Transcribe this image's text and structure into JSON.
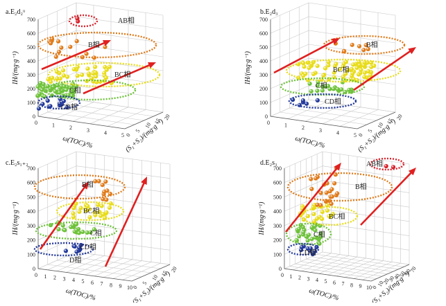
{
  "colors": {
    "B": "#e07b1a",
    "BC": "#e8dc1a",
    "C": "#6ec23a",
    "CD": "#22389a",
    "AB": "#d8202a",
    "arrow": "#e02020",
    "grid": "#c8c8c8"
  },
  "chart_data": [
    {
      "type": "scatter",
      "title": "a.E₂d₂ᵘ",
      "xlabel": "ω(TOC)/%",
      "ylabel": "IH/(mg·g⁻¹)",
      "zlabel": "(S₁+S₂)/(mg·g⁻¹)",
      "xticks": [
        "0",
        "1",
        "2",
        "3",
        "4",
        "5"
      ],
      "yticks": [
        "0",
        "100",
        "200",
        "300",
        "400",
        "500",
        "600",
        "700"
      ],
      "zticks": [
        "0",
        "5",
        "10",
        "15",
        "20"
      ],
      "ylim": [
        0,
        700
      ],
      "facies": [
        {
          "key": "AB",
          "label": "AB相",
          "color": "#d8202a"
        },
        {
          "key": "B",
          "label": "B相",
          "color": "#e07b1a"
        },
        {
          "key": "BC",
          "label": "BC相",
          "color": "#e8dc1a"
        },
        {
          "key": "C",
          "label": "C相",
          "color": "#6ec23a"
        },
        {
          "key": "CD",
          "label": "CD相",
          "color": "#22389a"
        }
      ]
    },
    {
      "type": "scatter",
      "title": "b.E₂d₃",
      "xlabel": "ω(TOC)/%",
      "ylabel": "IH/(mg·g⁻¹)",
      "zlabel": "(S₁+S₂)/(mg·g⁻¹)",
      "xticks": [
        "0",
        "1",
        "2",
        "3",
        "4",
        "5"
      ],
      "yticks": [
        "0",
        "100",
        "200",
        "300",
        "400",
        "500",
        "600",
        "700"
      ],
      "zticks": [
        "0",
        "5",
        "10",
        "15",
        "20"
      ],
      "ylim": [
        0,
        700
      ],
      "facies": [
        {
          "key": "B",
          "label": "B相",
          "color": "#e07b1a"
        },
        {
          "key": "BC",
          "label": "BC相",
          "color": "#e8dc1a"
        },
        {
          "key": "C",
          "label": "C相",
          "color": "#6ec23a"
        },
        {
          "key": "CD",
          "label": "CD相",
          "color": "#22389a"
        }
      ]
    },
    {
      "type": "scatter",
      "title": "c.E₂s₁₊₂",
      "xlabel": "ω(TOC)/%",
      "ylabel": "IH/(mg·g⁻¹)",
      "zlabel": "(S₁+S₂)/(mg·g⁻¹)",
      "xticks": [
        "0",
        "1",
        "2",
        "3",
        "4",
        "5",
        "6",
        "7",
        "8",
        "9",
        "10"
      ],
      "yticks": [
        "0",
        "100",
        "200",
        "300",
        "400",
        "500",
        "600",
        "700"
      ],
      "zticks": [
        "0",
        "5",
        "10",
        "15",
        "20"
      ],
      "ylim": [
        0,
        700
      ],
      "facies": [
        {
          "key": "B",
          "label": "B相",
          "color": "#e07b1a"
        },
        {
          "key": "BC",
          "label": "BC相",
          "color": "#e8dc1a"
        },
        {
          "key": "C",
          "label": "C相",
          "color": "#6ec23a"
        },
        {
          "key": "CD",
          "label": "CD相",
          "color": "#22389a"
        },
        {
          "key": "D",
          "label": "D相",
          "color": "#22389a"
        }
      ]
    },
    {
      "type": "scatter",
      "title": "d.E₂s₃",
      "xlabel": "ω(TOC)/%",
      "ylabel": "IH/(mg·g⁻¹)",
      "zlabel": "(S₁+S₂)/(mg·g⁻¹)",
      "xticks": [
        "0",
        "1",
        "2",
        "3",
        "4",
        "5",
        "6",
        "7",
        "8",
        "9",
        "10"
      ],
      "yticks": [
        "0",
        "100",
        "200",
        "300",
        "400",
        "500",
        "600",
        "700"
      ],
      "zticks": [
        "0",
        "10",
        "20",
        "30",
        "40",
        "50",
        "60",
        "70"
      ],
      "ylim": [
        0,
        700
      ],
      "facies": [
        {
          "key": "AB",
          "label": "AB相",
          "color": "#d8202a"
        },
        {
          "key": "B",
          "label": "B相",
          "color": "#e07b1a"
        },
        {
          "key": "BC",
          "label": "BC相",
          "color": "#e8dc1a"
        },
        {
          "key": "C",
          "label": "C相",
          "color": "#6ec23a"
        },
        {
          "key": "CD",
          "label": "CD相",
          "color": "#22389a"
        }
      ]
    }
  ]
}
